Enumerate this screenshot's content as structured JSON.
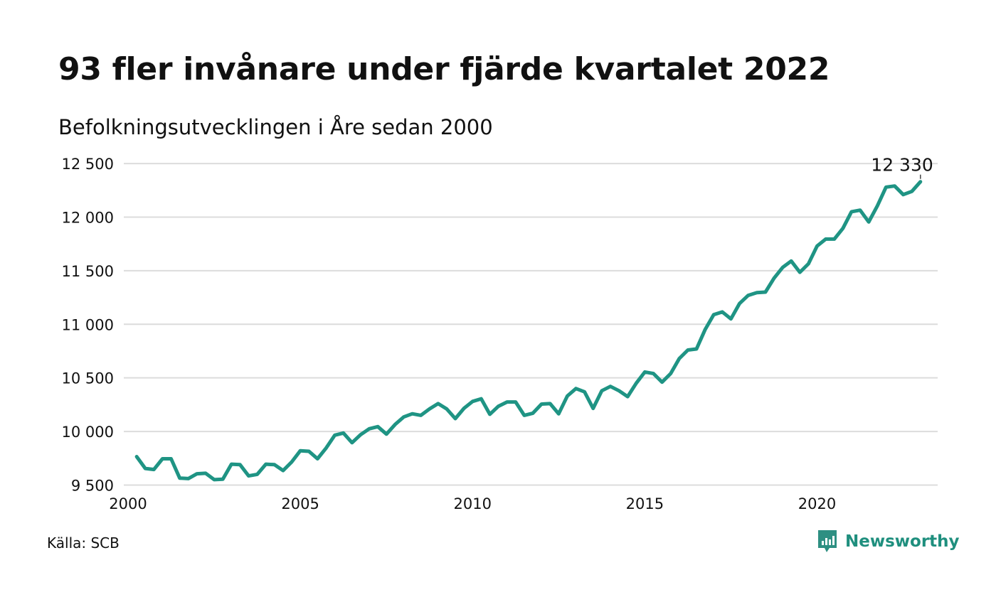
{
  "chart_data": {
    "type": "line",
    "title": "93 fler invånare under fjärde kvartalet 2022",
    "subtitle": "Befolkningsutvecklingen i Åre sedan 2000",
    "xlabel": "",
    "ylabel": "",
    "xlim": [
      2000,
      2023.5
    ],
    "ylim": [
      9450,
      12600
    ],
    "x_ticks": [
      2000,
      2005,
      2010,
      2015,
      2020
    ],
    "x_tick_labels": [
      "2000",
      "2005",
      "2010",
      "2015",
      "2020"
    ],
    "y_ticks": [
      9500,
      10000,
      10500,
      11000,
      11500,
      12000,
      12500
    ],
    "y_tick_labels": [
      "9 500",
      "10 000",
      "10 500",
      "11 000",
      "11 500",
      "12 000",
      "12 500"
    ],
    "grid": true,
    "color": "#1f9484",
    "series": [
      {
        "name": "",
        "x": [
          2000.25,
          2000.5,
          2000.75,
          2001.0,
          2001.25,
          2001.5,
          2001.75,
          2002.0,
          2002.25,
          2002.5,
          2002.75,
          2003.0,
          2003.25,
          2003.5,
          2003.75,
          2004.0,
          2004.25,
          2004.5,
          2004.75,
          2005.0,
          2005.25,
          2005.5,
          2005.75,
          2006.0,
          2006.25,
          2006.5,
          2006.75,
          2007.0,
          2007.25,
          2007.5,
          2007.75,
          2008.0,
          2008.25,
          2008.5,
          2008.75,
          2009.0,
          2009.25,
          2009.5,
          2009.75,
          2010.0,
          2010.25,
          2010.5,
          2010.75,
          2011.0,
          2011.25,
          2011.5,
          2011.75,
          2012.0,
          2012.25,
          2012.5,
          2012.75,
          2013.0,
          2013.25,
          2013.5,
          2013.75,
          2014.0,
          2014.25,
          2014.5,
          2014.75,
          2015.0,
          2015.25,
          2015.5,
          2015.75,
          2016.0,
          2016.25,
          2016.5,
          2016.75,
          2017.0,
          2017.25,
          2017.5,
          2017.75,
          2018.0,
          2018.25,
          2018.5,
          2018.75,
          2019.0,
          2019.25,
          2019.5,
          2019.75,
          2020.0,
          2020.25,
          2020.5,
          2020.75,
          2021.0,
          2021.25,
          2021.5,
          2021.75,
          2022.0,
          2022.25,
          2022.5,
          2022.75,
          2023.0
        ],
        "values": [
          9765,
          9655,
          9645,
          9745,
          9745,
          9565,
          9560,
          9605,
          9610,
          9550,
          9555,
          9695,
          9690,
          9585,
          9600,
          9695,
          9690,
          9635,
          9715,
          9820,
          9815,
          9745,
          9845,
          9965,
          9985,
          9895,
          9970,
          10025,
          10045,
          9975,
          10065,
          10135,
          10165,
          10150,
          10210,
          10260,
          10210,
          10120,
          10215,
          10280,
          10305,
          10160,
          10235,
          10275,
          10275,
          10150,
          10170,
          10255,
          10260,
          10165,
          10330,
          10400,
          10370,
          10215,
          10380,
          10420,
          10380,
          10325,
          10450,
          10555,
          10540,
          10460,
          10540,
          10680,
          10760,
          10770,
          10950,
          11090,
          11115,
          11050,
          11195,
          11270,
          11295,
          11300,
          11430,
          11530,
          11590,
          11485,
          11565,
          11730,
          11795,
          11795,
          11895,
          12050,
          12065,
          11955,
          12105,
          12280,
          12290,
          12210,
          12240,
          12330
        ]
      }
    ],
    "annotation": {
      "x": 2023.0,
      "value": 12330,
      "label": "12 330"
    },
    "source": "Källa: SCB"
  },
  "brand": {
    "label": "Newsworthy",
    "icon": "newsworthy-logo-icon",
    "color": "#2e8f82"
  }
}
